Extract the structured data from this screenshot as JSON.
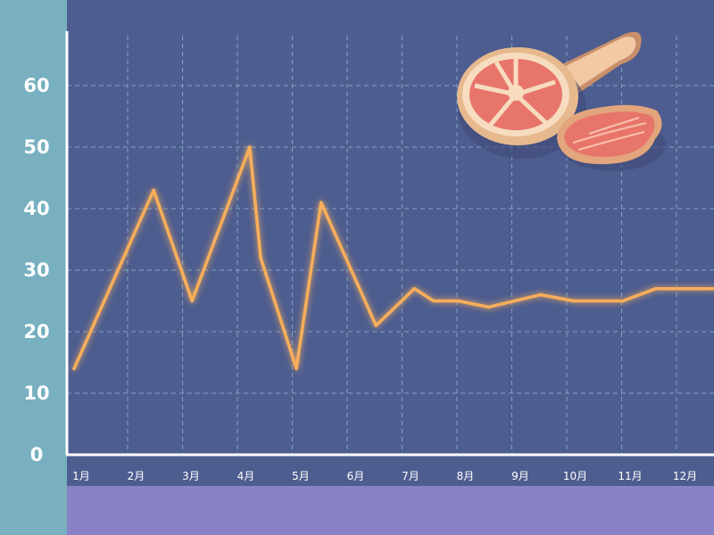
{
  "colors": {
    "plot_background": "#4e5d8f",
    "left_band": "#78b0c0",
    "bottom_band": "#8a82c6",
    "line": "#f7ae5a",
    "grid": "#7fa3c4",
    "axis": "#ffffff"
  },
  "illustration": "ham-and-meat-slice-icon",
  "chart_data": {
    "type": "line",
    "title": "",
    "xlabel": "",
    "ylabel": "",
    "x_ticks": [
      "1月",
      "2月",
      "3月",
      "4月",
      "5月",
      "6月",
      "7月",
      "8月",
      "9月",
      "10月",
      "11月",
      "12月"
    ],
    "y_ticks": [
      0,
      10,
      20,
      30,
      40,
      50,
      60
    ],
    "ylim": [
      0,
      68
    ],
    "grid": true,
    "legend": "none",
    "series": [
      {
        "x": [
          1,
          2.45,
          3.15,
          4.2,
          4.4,
          5.05,
          5.5,
          6.5,
          7.2,
          7.55,
          8.0,
          8.55,
          9.5,
          10.1,
          11.0,
          11.6,
          12.65
        ],
        "y": [
          14,
          43,
          25,
          50,
          32,
          14,
          41,
          21,
          27,
          25,
          25,
          24,
          26,
          25,
          25,
          27,
          27
        ]
      }
    ]
  }
}
